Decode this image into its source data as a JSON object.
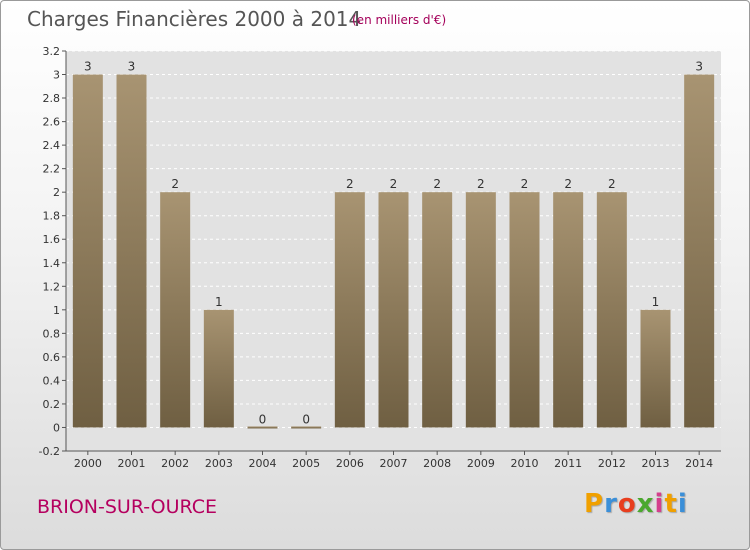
{
  "chart_data": {
    "type": "bar",
    "title": "Charges Financières 2000 à 2014",
    "subtitle": "(en milliers d'€)",
    "categories": [
      "2000",
      "2001",
      "2002",
      "2003",
      "2004",
      "2005",
      "2006",
      "2007",
      "2008",
      "2009",
      "2010",
      "2011",
      "2012",
      "2013",
      "2014"
    ],
    "values": [
      3,
      3,
      2,
      1,
      0,
      0,
      2,
      2,
      2,
      2,
      2,
      2,
      2,
      1,
      3
    ],
    "value_labels": [
      "3",
      "3",
      "2",
      "1",
      "0",
      "0",
      "2",
      "2",
      "2",
      "2",
      "2",
      "2",
      "2",
      "1",
      "3"
    ],
    "ylim": [
      -0.2,
      3.2
    ],
    "yticks": [
      "3.2",
      "3",
      "2.8",
      "2.6",
      "2.4",
      "2.2",
      "2",
      "1.8",
      "1.6",
      "1.4",
      "1.2",
      "1",
      "0.8",
      "0.6",
      "0.4",
      "0.2",
      "0",
      "-0.2"
    ],
    "ytick_values": [
      3.2,
      3,
      2.8,
      2.6,
      2.4,
      2.2,
      2,
      1.8,
      1.6,
      1.4,
      1.2,
      1,
      0.8,
      0.6,
      0.4,
      0.2,
      0,
      -0.2
    ],
    "xlabel": "",
    "ylabel": "",
    "grid": true,
    "bar_color_top": "#a89472",
    "bar_color_bottom": "#6f5f42"
  },
  "place_name": "BRION-SUR-OURCE",
  "logo": {
    "letters": [
      "P",
      "r",
      "o",
      "x",
      "i",
      "t",
      "i"
    ],
    "colors": [
      "#f0a000",
      "#3b8fd8",
      "#e83e1e",
      "#4aa82e",
      "#d43f8d",
      "#f0a000",
      "#3b8fd8"
    ]
  }
}
